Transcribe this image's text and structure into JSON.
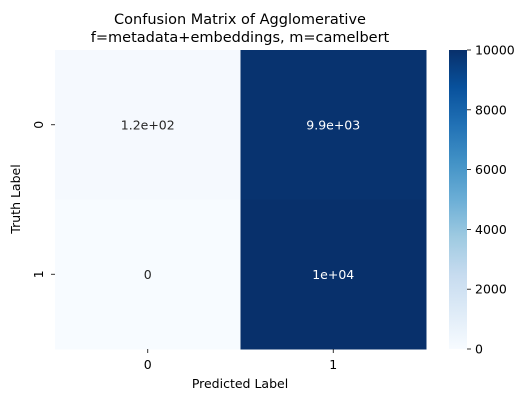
{
  "chart_data": {
    "type": "heatmap",
    "title_lines": [
      "Confusion Matrix of Agglomerative",
      "f=metadata+embeddings, m=camelbert"
    ],
    "xlabel": "Predicted Label",
    "ylabel": "Truth Label",
    "x_categories": [
      "0",
      "1"
    ],
    "y_categories": [
      "0",
      "1"
    ],
    "values": [
      [
        120,
        9900
      ],
      [
        0,
        10000
      ]
    ],
    "annotations": [
      [
        "1.2e+02",
        "9.9e+03"
      ],
      [
        "0",
        "1e+04"
      ]
    ],
    "colormap": "Blues",
    "colorbar": {
      "min": 0,
      "max": 10000,
      "ticks": [
        0,
        2000,
        4000,
        6000,
        8000,
        10000
      ],
      "tick_labels": [
        "0",
        "2000",
        "4000",
        "6000",
        "8000",
        "10000"
      ]
    },
    "colors": {
      "low": "#f7fbff",
      "high": "#08306b",
      "text_on_light": "#262626",
      "text_on_dark": "#ffffff"
    }
  }
}
